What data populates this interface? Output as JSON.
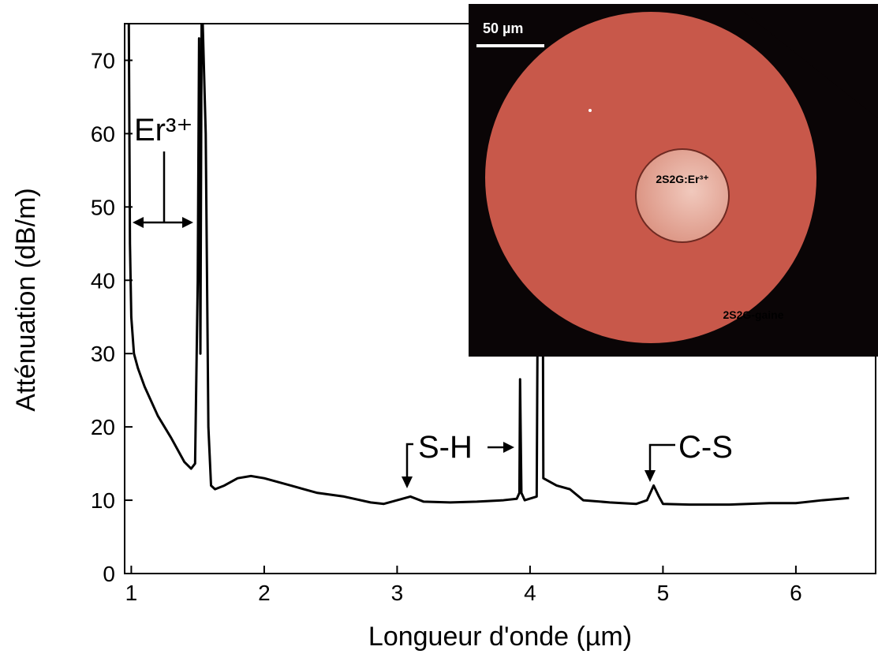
{
  "chart_data": {
    "type": "line",
    "x_label": "Longueur d'onde (µm)",
    "y_label": "Atténuation (dB/m)",
    "xlim": [
      0.95,
      6.6
    ],
    "ylim": [
      0,
      75
    ],
    "xticks": [
      1,
      2,
      3,
      4,
      5,
      6
    ],
    "yticks": [
      0,
      10,
      20,
      30,
      40,
      50,
      60,
      70
    ],
    "x": [
      0.98,
      0.99,
      1.0,
      1.02,
      1.05,
      1.1,
      1.2,
      1.3,
      1.4,
      1.45,
      1.48,
      1.5,
      1.51,
      1.52,
      1.53,
      1.56,
      1.58,
      1.6,
      1.63,
      1.7,
      1.8,
      1.9,
      2.0,
      2.2,
      2.4,
      2.6,
      2.8,
      2.9,
      3.0,
      3.1,
      3.2,
      3.4,
      3.6,
      3.8,
      3.9,
      3.92,
      3.925,
      3.935,
      3.96,
      4.05,
      4.07,
      4.09,
      4.1,
      4.15,
      4.2,
      4.3,
      4.4,
      4.6,
      4.8,
      4.88,
      4.93,
      4.97,
      5.0,
      5.2,
      5.5,
      5.8,
      6.0,
      6.2,
      6.4
    ],
    "series": [
      {
        "color": "#000000",
        "values": [
          80,
          45,
          35,
          30,
          28,
          25.5,
          21.5,
          18.5,
          15.2,
          14.3,
          15,
          40,
          73,
          30,
          80,
          60,
          20,
          12,
          11.5,
          12,
          13,
          13.3,
          13,
          12,
          11,
          10.5,
          9.7,
          9.5,
          10,
          10.5,
          9.8,
          9.7,
          9.8,
          10,
          10.2,
          11,
          26.5,
          11,
          10,
          10.5,
          80,
          80,
          13,
          12.5,
          12,
          11.5,
          10,
          9.7,
          9.5,
          10,
          12,
          10.5,
          9.5,
          9.4,
          9.4,
          9.6,
          9.6,
          10,
          10.3
        ]
      }
    ],
    "annotations": [
      "Er³⁺",
      "S-H",
      "C-S"
    ],
    "inset": {
      "scale_bar": "50 µm",
      "core_label": "2S2G:Er³⁺",
      "cladding_label": "2S2G-gaine"
    }
  }
}
